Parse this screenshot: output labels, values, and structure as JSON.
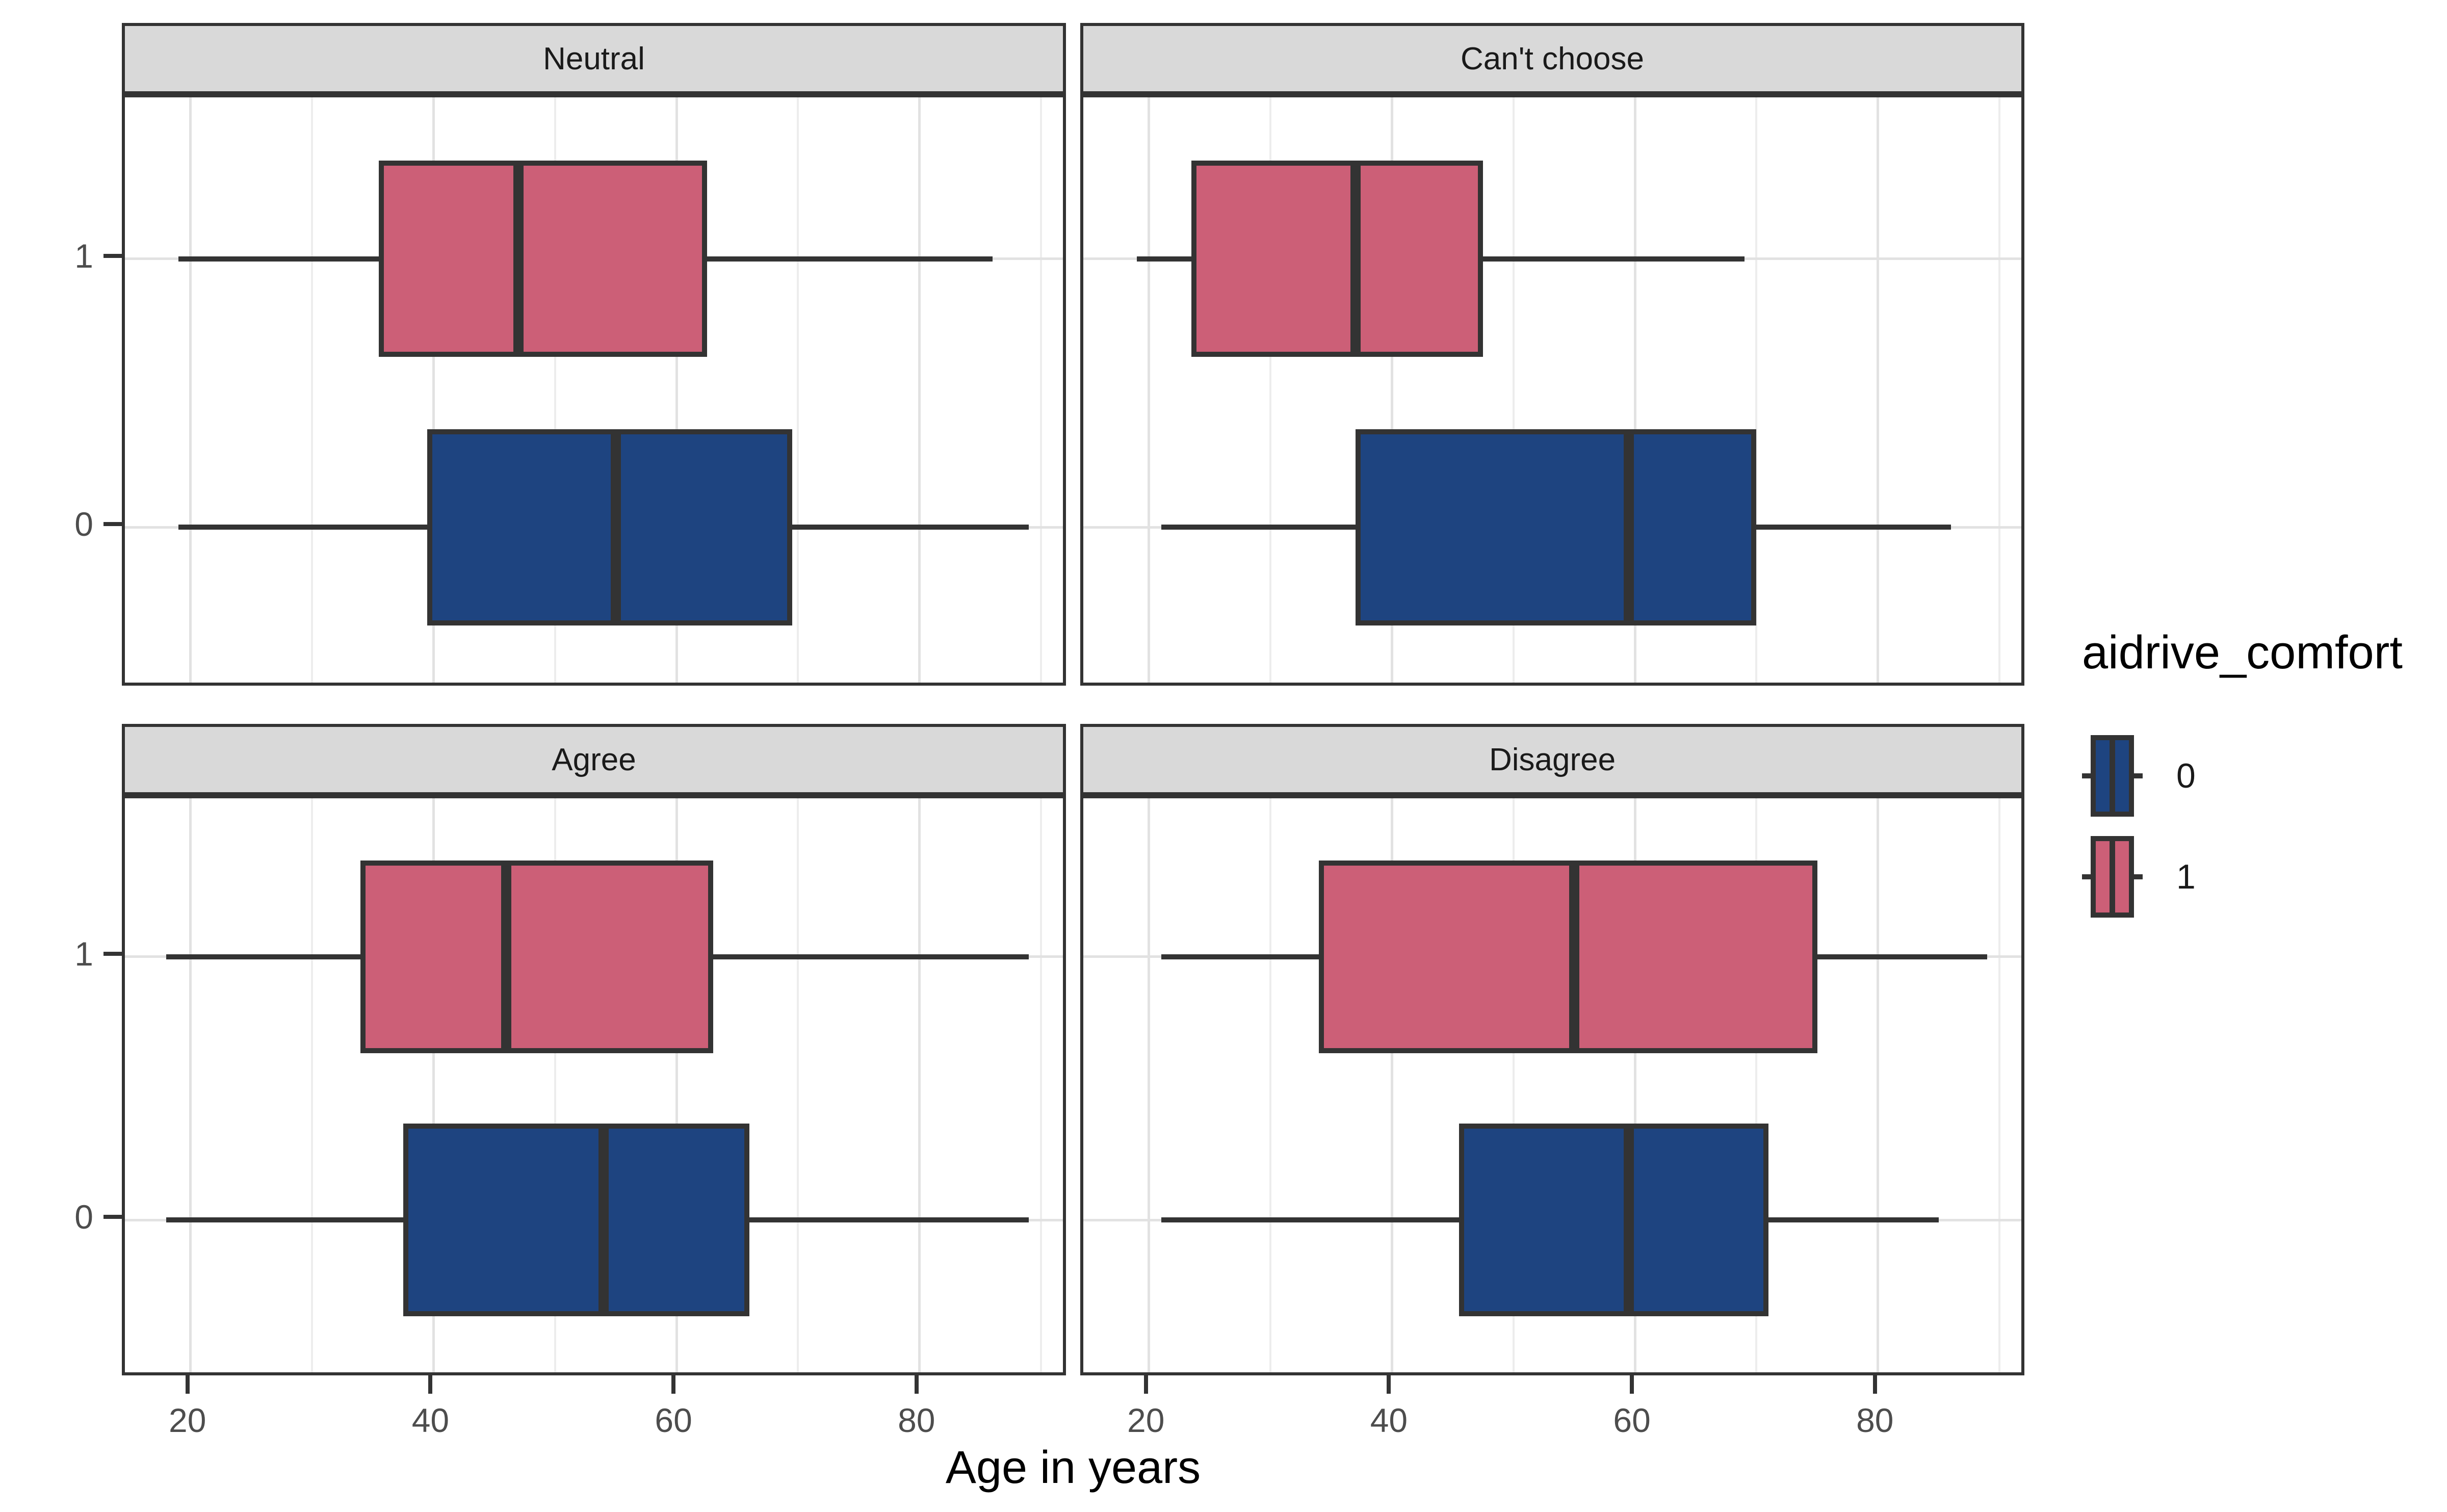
{
  "axis": {
    "x_title": "Age in years",
    "x_ticks": [
      "20",
      "40",
      "60",
      "80"
    ],
    "x_tick_values": [
      20,
      40,
      60,
      80
    ],
    "x_minor_values": [
      30,
      50,
      70,
      90
    ],
    "y_categories": [
      "1",
      "0"
    ]
  },
  "legend": {
    "title": "aidrive_comfort",
    "entries": [
      {
        "label": "0",
        "color": "#1E4480"
      },
      {
        "label": "1",
        "color": "#CC5F77"
      }
    ]
  },
  "colors": {
    "group0_fill": "#1E4480",
    "group1_fill": "#CC5F77",
    "line": "#333333",
    "strip_bg": "#D9D9D9",
    "grid_major": "#E2E2E2",
    "grid_minor": "#EDEDED",
    "axis_text": "#4D4D4D"
  },
  "chart_data": {
    "type": "boxplot",
    "orientation": "horizontal",
    "faceted": true,
    "xlabel": "Age in years",
    "xlim": [
      14.6,
      92.3
    ],
    "x_ticks": [
      20,
      40,
      60,
      80
    ],
    "x_minor_ticks": [
      30,
      50,
      70,
      90
    ],
    "y_categories_top_to_bottom": [
      "1",
      "0"
    ],
    "legend_title": "aidrive_comfort",
    "facets": [
      {
        "label": "Neutral",
        "boxes": [
          {
            "group": "1",
            "color": "#CC5F77",
            "min": 19,
            "q1": 35.5,
            "median": 47,
            "q3": 62.5,
            "max": 86
          },
          {
            "group": "0",
            "color": "#1E4480",
            "min": 19,
            "q1": 39.5,
            "median": 55,
            "q3": 69.5,
            "max": 89
          }
        ]
      },
      {
        "label": "Can't choose",
        "boxes": [
          {
            "group": "1",
            "color": "#CC5F77",
            "min": 19,
            "q1": 23.5,
            "median": 37,
            "q3": 47.5,
            "max": 69
          },
          {
            "group": "0",
            "color": "#1E4480",
            "min": 21,
            "q1": 37,
            "median": 59.5,
            "q3": 70,
            "max": 86
          }
        ]
      },
      {
        "label": "Agree",
        "boxes": [
          {
            "group": "1",
            "color": "#CC5F77",
            "min": 18,
            "q1": 34,
            "median": 46,
            "q3": 63,
            "max": 89
          },
          {
            "group": "0",
            "color": "#1E4480",
            "min": 18,
            "q1": 37.5,
            "median": 54,
            "q3": 66,
            "max": 89
          }
        ]
      },
      {
        "label": "Disagree",
        "boxes": [
          {
            "group": "1",
            "color": "#CC5F77",
            "min": 21,
            "q1": 34,
            "median": 55,
            "q3": 75,
            "max": 89
          },
          {
            "group": "0",
            "color": "#1E4480",
            "min": 21,
            "q1": 45.5,
            "median": 59.5,
            "q3": 71,
            "max": 85
          }
        ]
      }
    ]
  }
}
